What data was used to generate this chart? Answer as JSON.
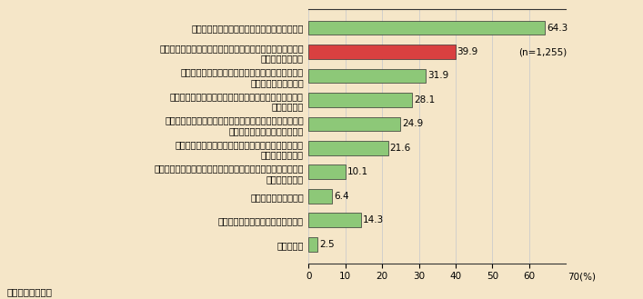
{
  "categories": [
    "耗震化や免震化されているなど、地震に強い家",
    "通風や採光にすぐれ、窓や壁などが断熱化されているなど、\n省エネに優れた家",
    "ドアや窓などに防犯設備がほどこされているなど、\n犯罪に対して安全な家",
    "不燃化や有毒ガスを出さない素材が使われているなど、\n火事に強い家",
    "壁などの耗久性が高く、配管や電気設備などの維持管理が\n容易であるなど、長持ちする家",
    "壁などにシックハウス対策がほどこされているなど、\n健康に配慮した家",
    "床や壁が厚く音や振動を伝えにくい材料で作られているなど、\n防音に優れた家",
    "その他の性能のよい家",
    "どれにもお金をかけるつもりはない",
    "わからない"
  ],
  "values": [
    64.3,
    39.9,
    31.9,
    28.1,
    24.9,
    21.6,
    10.1,
    6.4,
    14.3,
    2.5
  ],
  "bar_colors": [
    "#8dc878",
    "#d94040",
    "#8dc878",
    "#8dc878",
    "#8dc878",
    "#8dc878",
    "#8dc878",
    "#8dc878",
    "#8dc878",
    "#8dc878"
  ],
  "background_color": "#f5e6c8",
  "xlim": [
    0,
    70
  ],
  "xticks": [
    0,
    10,
    20,
    30,
    40,
    50,
    60,
    70
  ],
  "annotation_n": "(n=1,255)",
  "source": "資料）国土交通省",
  "bar_height": 0.6,
  "value_fontsize": 7.5,
  "label_fontsize": 7,
  "tick_fontsize": 7.5
}
